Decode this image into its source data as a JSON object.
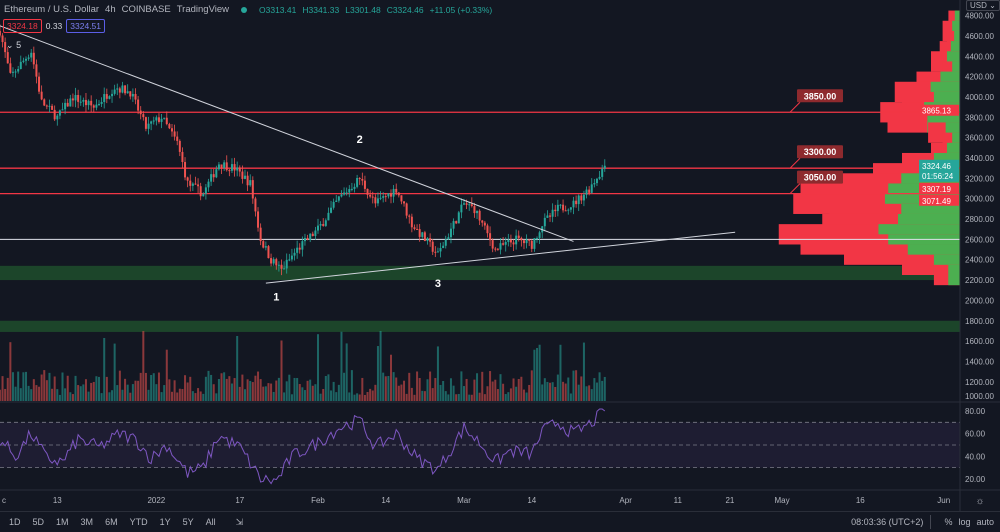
{
  "legend": {
    "symbol": "Ethereum / U.S. Dollar",
    "interval": "4h",
    "exchange": "COINBASE",
    "source": "TradingView",
    "open": "O3313.41",
    "high": "H3341.33",
    "low": "L3301.48",
    "close": "C3324.46",
    "change": "+11.05 (+0.33%)",
    "bid": "3324.18",
    "spread": "0.33",
    "ask": "3324.51",
    "indicator_count": "5"
  },
  "currency": "USD",
  "colors": {
    "up": "#26a69a",
    "down": "#ef5350",
    "level": "#f23645",
    "zone": "#1e4d2b",
    "rsi": "#7e57c2",
    "profile_up": "#4caf50",
    "profile_down": "#f23645"
  },
  "bottom_bar": {
    "ranges": [
      "1D",
      "5D",
      "1M",
      "3M",
      "6M",
      "YTD",
      "1Y",
      "5Y",
      "All"
    ],
    "time": "08:03:36 (UTC+2)",
    "percent": "%",
    "log": "log",
    "auto": "auto"
  },
  "chart_data": {
    "type": "candlestick",
    "price_axis": {
      "range": [
        1000,
        4800
      ],
      "ticks": [
        "4800.00",
        "4600.00",
        "4400.00",
        "4200.00",
        "4000.00",
        "3800.00",
        "3600.00",
        "3400.00",
        "3200.00",
        "3000.00",
        "2800.00",
        "2600.00",
        "2400.00",
        "2200.00",
        "2000.00",
        "1800.00",
        "1600.00",
        "1400.00",
        "1200.00",
        "1000.00"
      ]
    },
    "time_axis": {
      "labels": [
        {
          "label": "c",
          "date": "2021-12-01"
        },
        {
          "label": "13",
          "date": "2021-12-13"
        },
        {
          "label": "2022",
          "date": "2022-01-01"
        },
        {
          "label": "17",
          "date": "2022-01-17"
        },
        {
          "label": "Feb",
          "date": "2022-02-01"
        },
        {
          "label": "14",
          "date": "2022-02-14"
        },
        {
          "label": "Mar",
          "date": "2022-03-01"
        },
        {
          "label": "14",
          "date": "2022-03-14"
        },
        {
          "label": "Apr",
          "date": "2022-04-01"
        },
        {
          "label": "11",
          "date": "2022-04-11"
        },
        {
          "label": "21",
          "date": "2022-04-21"
        },
        {
          "label": "May",
          "date": "2022-05-01"
        },
        {
          "label": "16",
          "date": "2022-05-16"
        },
        {
          "label": "Jun",
          "date": "2022-06-01"
        }
      ]
    },
    "close_path": [
      [
        "2021-12-02",
        4650
      ],
      [
        "2021-12-04",
        4200
      ],
      [
        "2021-12-08",
        4450
      ],
      [
        "2021-12-10",
        3950
      ],
      [
        "2021-12-13",
        3800
      ],
      [
        "2021-12-16",
        4000
      ],
      [
        "2021-12-20",
        3900
      ],
      [
        "2021-12-24",
        4100
      ],
      [
        "2021-12-27",
        4050
      ],
      [
        "2021-12-30",
        3700
      ],
      [
        "2022-01-02",
        3800
      ],
      [
        "2022-01-05",
        3550
      ],
      [
        "2022-01-07",
        3150
      ],
      [
        "2022-01-10",
        3050
      ],
      [
        "2022-01-13",
        3350
      ],
      [
        "2022-01-16",
        3300
      ],
      [
        "2022-01-19",
        3150
      ],
      [
        "2022-01-21",
        2600
      ],
      [
        "2022-01-23",
        2400
      ],
      [
        "2022-01-25",
        2300
      ],
      [
        "2022-01-28",
        2500
      ],
      [
        "2022-02-01",
        2700
      ],
      [
        "2022-02-05",
        3000
      ],
      [
        "2022-02-09",
        3200
      ],
      [
        "2022-02-12",
        2950
      ],
      [
        "2022-02-16",
        3100
      ],
      [
        "2022-02-19",
        2750
      ],
      [
        "2022-02-24",
        2450
      ],
      [
        "2022-02-26",
        2650
      ],
      [
        "2022-03-01",
        2950
      ],
      [
        "2022-03-03",
        2900
      ],
      [
        "2022-03-07",
        2500
      ],
      [
        "2022-03-11",
        2600
      ],
      [
        "2022-03-14",
        2550
      ],
      [
        "2022-03-16",
        2750
      ],
      [
        "2022-03-19",
        2900
      ],
      [
        "2022-03-22",
        2950
      ],
      [
        "2022-03-25",
        3100
      ],
      [
        "2022-03-28",
        3324.46
      ]
    ],
    "levels": [
      {
        "label": "3850.00",
        "price": 3850
      },
      {
        "label": "3300.00",
        "price": 3300
      },
      {
        "label": "3050.00",
        "price": 3050
      }
    ],
    "support_line": 2600,
    "zones": [
      [
        2200,
        2340
      ],
      [
        1690,
        1800
      ]
    ],
    "trendlines": [
      {
        "from": [
          "2021-12-02",
          4700
        ],
        "to": [
          "2022-03-22",
          2580
        ]
      },
      {
        "from": [
          "2022-01-22",
          2170
        ],
        "to": [
          "2022-04-22",
          2670
        ]
      }
    ],
    "annotations": [
      {
        "text": "1",
        "date": "2022-01-24",
        "price": 2000
      },
      {
        "text": "2",
        "date": "2022-02-09",
        "price": 3550
      },
      {
        "text": "3",
        "date": "2022-02-24",
        "price": 2130
      }
    ],
    "price_badges": [
      {
        "value": "3865.13",
        "price": 3865,
        "color": "#f23645"
      },
      {
        "value": "3324.46",
        "sub": "01:56:24",
        "price": 3324,
        "color": "#26a69a"
      },
      {
        "value": "3307.19",
        "price": 3280,
        "color": "#f23645"
      },
      {
        "value": "3071.49",
        "price": 3060,
        "color": "#f23645"
      }
    ],
    "volume_profile": [
      [
        4750,
        8
      ],
      [
        4650,
        12
      ],
      [
        4550,
        9
      ],
      [
        4450,
        14
      ],
      [
        4350,
        20
      ],
      [
        4250,
        12
      ],
      [
        4150,
        30
      ],
      [
        4050,
        45
      ],
      [
        3950,
        40
      ],
      [
        3850,
        55
      ],
      [
        3750,
        50
      ],
      [
        3650,
        22
      ],
      [
        3550,
        12
      ],
      [
        3450,
        20
      ],
      [
        3350,
        40
      ],
      [
        3250,
        60
      ],
      [
        3150,
        90
      ],
      [
        3050,
        110
      ],
      [
        2950,
        115
      ],
      [
        2850,
        90
      ],
      [
        2750,
        95
      ],
      [
        2650,
        125
      ],
      [
        2550,
        110
      ],
      [
        2450,
        80
      ],
      [
        2350,
        40
      ],
      [
        2250,
        18
      ]
    ],
    "rsi": {
      "range": [
        10,
        90
      ],
      "ticks": [
        "80.00",
        "60.00",
        "40.00",
        "20.00"
      ],
      "bands": [
        70,
        50,
        30
      ],
      "values": [
        [
          "2021-12-02",
          55
        ],
        [
          "2021-12-05",
          40
        ],
        [
          "2021-12-08",
          60
        ],
        [
          "2021-12-11",
          38
        ],
        [
          "2021-12-14",
          35
        ],
        [
          "2021-12-17",
          55
        ],
        [
          "2021-12-21",
          48
        ],
        [
          "2021-12-25",
          60
        ],
        [
          "2021-12-28",
          55
        ],
        [
          "2021-12-31",
          38
        ],
        [
          "2022-01-03",
          50
        ],
        [
          "2022-01-07",
          25
        ],
        [
          "2022-01-10",
          30
        ],
        [
          "2022-01-13",
          58
        ],
        [
          "2022-01-17",
          48
        ],
        [
          "2022-01-21",
          20
        ],
        [
          "2022-01-24",
          18
        ],
        [
          "2022-01-27",
          40
        ],
        [
          "2022-02-01",
          52
        ],
        [
          "2022-02-05",
          65
        ],
        [
          "2022-02-09",
          72
        ],
        [
          "2022-02-12",
          48
        ],
        [
          "2022-02-16",
          60
        ],
        [
          "2022-02-20",
          38
        ],
        [
          "2022-02-24",
          28
        ],
        [
          "2022-02-27",
          50
        ],
        [
          "2022-03-01",
          65
        ],
        [
          "2022-03-04",
          52
        ],
        [
          "2022-03-07",
          35
        ],
        [
          "2022-03-10",
          45
        ],
        [
          "2022-03-14",
          42
        ],
        [
          "2022-03-16",
          62
        ],
        [
          "2022-03-19",
          70
        ],
        [
          "2022-03-22",
          60
        ],
        [
          "2022-03-25",
          68
        ],
        [
          "2022-03-28",
          80
        ]
      ]
    },
    "volume_axis_min": "1000.00"
  }
}
